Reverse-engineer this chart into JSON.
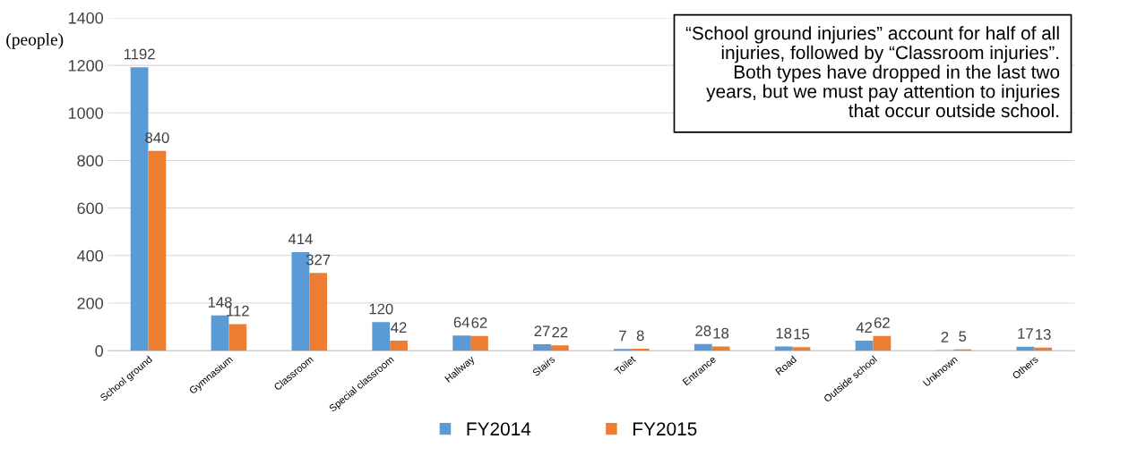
{
  "chart_data": {
    "type": "bar",
    "ylabel": "(people)",
    "categories": [
      "School ground",
      "Gymnasium",
      "Classroom",
      "Special classroom",
      "Hallway",
      "Stairs",
      "Toilet",
      "Entrance",
      "Road",
      "Outside school",
      "Unknown",
      "Others"
    ],
    "series": [
      {
        "name": "FY2014",
        "color": "#5b9bd5",
        "values": [
          1192,
          148,
          414,
          120,
          64,
          27,
          7,
          28,
          18,
          42,
          2,
          17
        ]
      },
      {
        "name": "FY2015",
        "color": "#ed7d31",
        "values": [
          840,
          112,
          327,
          42,
          62,
          22,
          8,
          18,
          15,
          62,
          5,
          13
        ]
      }
    ],
    "ylim": [
      0,
      1400
    ],
    "yticks": [
      0,
      200,
      400,
      600,
      800,
      1000,
      1200,
      1400
    ],
    "grid": "y",
    "legend": "bottom",
    "data_labels": true,
    "annotations": [
      "“School ground injuries” account for half of all\ninjuries, followed by “Classroom injuries”.\nBoth types have dropped in the last two\nyears, but we must pay attention to injuries\nthat occur outside school."
    ]
  }
}
